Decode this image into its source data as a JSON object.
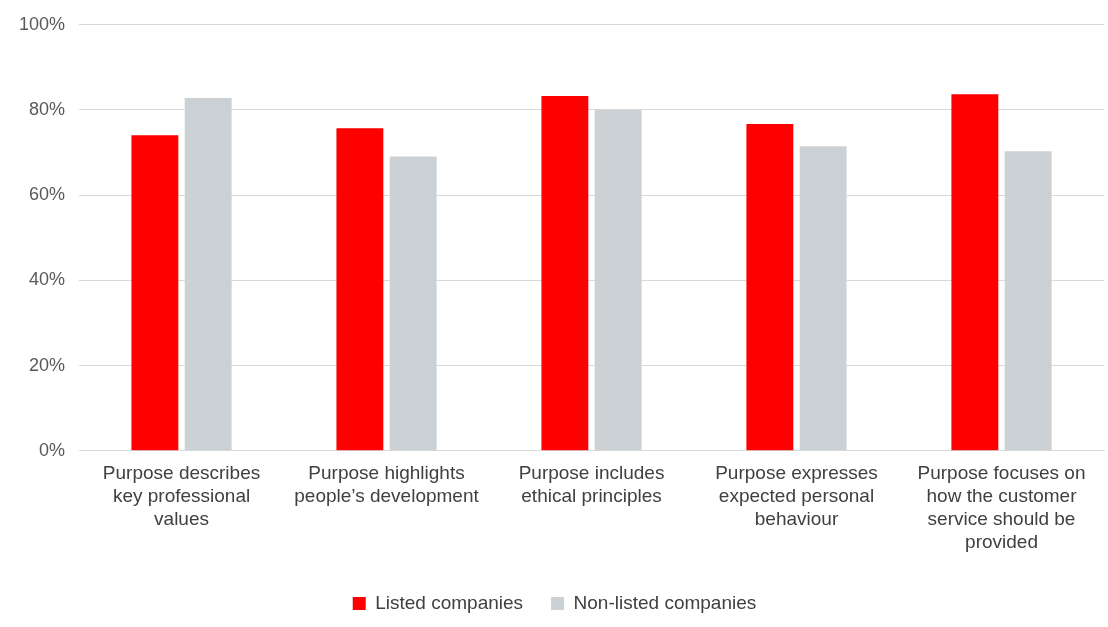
{
  "chart_data": {
    "type": "bar",
    "categories": [
      "Purpose describes key professional values",
      "Purpose highlights people’s development",
      "Purpose includes ethical principles",
      "Purpose expresses expected personal behaviour",
      "Purpose focuses on how the customer service should be provided"
    ],
    "series": [
      {
        "name": "Listed companies",
        "color": "#ff0000",
        "values": [
          74.1,
          75.7,
          83.3,
          76.7,
          83.7
        ]
      },
      {
        "name": "Non-listed companies",
        "color": "#cbd1d4",
        "values": [
          82.8,
          69.1,
          80.0,
          71.5,
          70.3
        ]
      }
    ],
    "ylim": [
      0,
      100
    ],
    "yticks": [
      {
        "value": 0,
        "label": "0%"
      },
      {
        "value": 20,
        "label": "20%"
      },
      {
        "value": 40,
        "label": "40%"
      },
      {
        "value": 60,
        "label": "60%"
      },
      {
        "value": 80,
        "label": "80%"
      },
      {
        "value": 100,
        "label": "100%"
      }
    ],
    "grid": "y",
    "legend": "bottom"
  }
}
